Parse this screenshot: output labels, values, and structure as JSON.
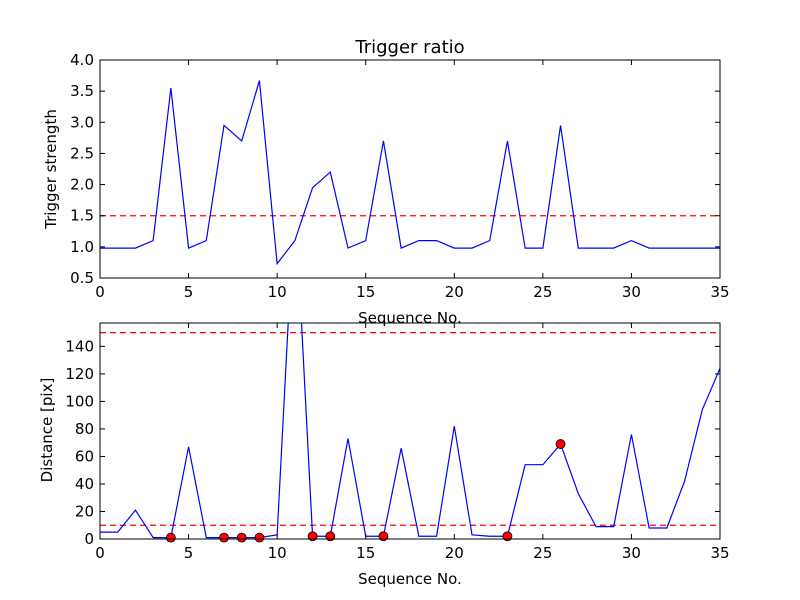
{
  "chart_data": [
    {
      "type": "line",
      "title": "Trigger ratio",
      "xlabel": "Sequence No.",
      "ylabel": "Trigger strength",
      "xlim": [
        0,
        35
      ],
      "ylim": [
        0.5,
        4.0
      ],
      "xticks": [
        "0",
        "5",
        "10",
        "15",
        "20",
        "25",
        "30",
        "35"
      ],
      "yticks": [
        "0.5",
        "1.0",
        "1.5",
        "2.0",
        "2.5",
        "3.0",
        "3.5",
        "4.0"
      ],
      "series": [
        {
          "color": "#0000ff",
          "x": [
            0,
            1,
            2,
            3,
            4,
            5,
            6,
            7,
            8,
            9,
            10,
            11,
            12,
            13,
            14,
            15,
            16,
            17,
            18,
            19,
            20,
            21,
            22,
            23,
            24,
            25,
            26,
            27,
            28,
            29,
            30,
            31,
            32,
            33,
            34,
            35
          ],
          "values": [
            0.98,
            0.98,
            0.98,
            1.1,
            3.55,
            0.98,
            1.1,
            2.95,
            2.7,
            3.67,
            0.73,
            1.1,
            1.95,
            2.2,
            0.98,
            1.1,
            2.7,
            0.98,
            1.1,
            1.1,
            0.98,
            0.98,
            1.1,
            2.7,
            0.98,
            0.98,
            2.95,
            0.98,
            0.98,
            0.98,
            1.1,
            0.98,
            0.98,
            0.98,
            0.98,
            0.98
          ]
        }
      ],
      "threshold_lines": [
        {
          "y": 1.5,
          "color": "#ff0000",
          "style": "dashed"
        }
      ]
    },
    {
      "type": "line",
      "title": "",
      "xlabel": "Sequence No.",
      "ylabel": "Distance [pix]",
      "xlim": [
        0,
        35
      ],
      "ylim": [
        0,
        157
      ],
      "xticks": [
        "0",
        "5",
        "10",
        "15",
        "20",
        "25",
        "30",
        "35"
      ],
      "yticks": [
        "0",
        "20",
        "40",
        "60",
        "80",
        "100",
        "120",
        "140"
      ],
      "series": [
        {
          "color": "#0000ff",
          "x": [
            0,
            1,
            2,
            3,
            4,
            5,
            6,
            7,
            8,
            9,
            10,
            11,
            12,
            13,
            14,
            15,
            16,
            17,
            18,
            19,
            20,
            21,
            22,
            23,
            24,
            25,
            26,
            27,
            28,
            29,
            30,
            31,
            32,
            33,
            34,
            35
          ],
          "values": [
            5,
            5,
            21,
            1,
            1,
            67,
            1,
            1,
            1,
            1,
            3,
            250,
            2,
            2,
            73,
            2,
            2,
            66,
            2,
            2,
            82,
            3,
            2,
            2,
            54,
            54,
            69,
            33,
            9,
            9,
            76,
            8,
            8,
            42,
            94,
            124
          ]
        }
      ],
      "markers": {
        "color": "#ff0000",
        "x": [
          4,
          7,
          8,
          9,
          12,
          13,
          16,
          23,
          26
        ],
        "values": [
          1,
          1,
          1,
          1,
          2,
          2,
          2,
          2,
          69
        ]
      },
      "threshold_lines": [
        {
          "y": 150,
          "color": "#ff0000",
          "style": "dashed"
        },
        {
          "y": 10,
          "color": "#ff0000",
          "style": "dashed"
        }
      ]
    }
  ]
}
